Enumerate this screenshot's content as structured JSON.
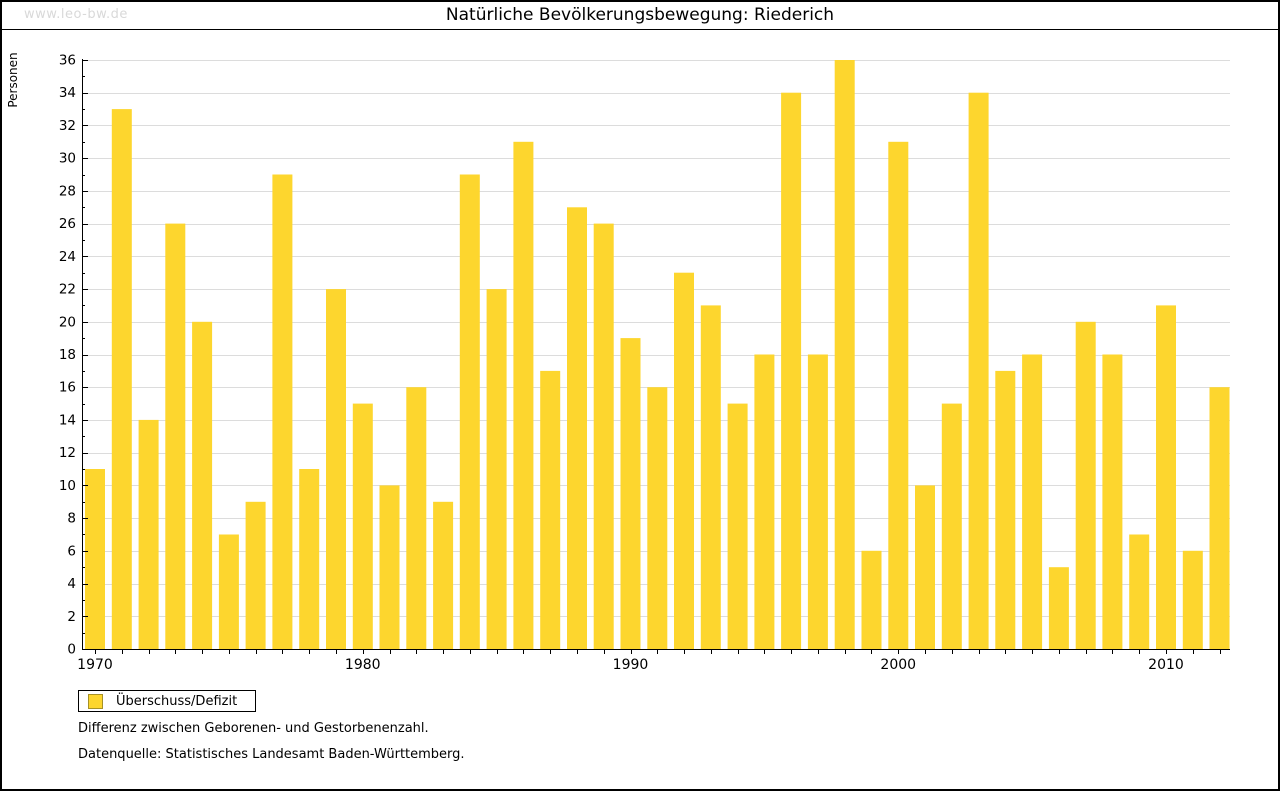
{
  "watermark": "www.leo-bw.de",
  "title": "Natürliche Bevölkerungsbewegung: Riederich",
  "legend": {
    "label": "Überschuss/Defizit"
  },
  "footnotes": [
    "Differenz zwischen Geborenen- und Gestorbenenzahl.",
    "Datenquelle: Statistisches Landesamt Baden-Württemberg."
  ],
  "colors": {
    "bar": "#fdd62e",
    "legend_swatch_border": "#a69126",
    "grid": "#dcdcdc",
    "axis": "#000000",
    "watermark": "#d9d9d9"
  },
  "chart_data": {
    "type": "bar",
    "title": "Natürliche Bevölkerungsbewegung: Riederich",
    "xlabel": "",
    "ylabel": "Personen",
    "ylim": [
      0,
      36
    ],
    "ytick_step": 2,
    "grid": "horizontal",
    "legend_position": "bottom-left",
    "legend_entries": [
      "Überschuss/Defizit"
    ],
    "categories": [
      1970,
      1971,
      1972,
      1973,
      1974,
      1975,
      1976,
      1977,
      1978,
      1979,
      1980,
      1981,
      1982,
      1983,
      1984,
      1985,
      1986,
      1987,
      1988,
      1989,
      1990,
      1991,
      1992,
      1993,
      1994,
      1995,
      1996,
      1997,
      1998,
      1999,
      2000,
      2001,
      2002,
      2003,
      2004,
      2005,
      2006,
      2007,
      2008,
      2009,
      2010,
      2011,
      2012
    ],
    "values": [
      11,
      33,
      14,
      26,
      20,
      7,
      9,
      29,
      11,
      22,
      15,
      10,
      16,
      9,
      29,
      22,
      31,
      17,
      27,
      26,
      19,
      16,
      23,
      21,
      15,
      18,
      34,
      18,
      36,
      6,
      31,
      10,
      15,
      34,
      17,
      18,
      5,
      20,
      18,
      7,
      21,
      6,
      16
    ],
    "xtick_labels": [
      1970,
      1980,
      1990,
      2000,
      2010
    ]
  }
}
